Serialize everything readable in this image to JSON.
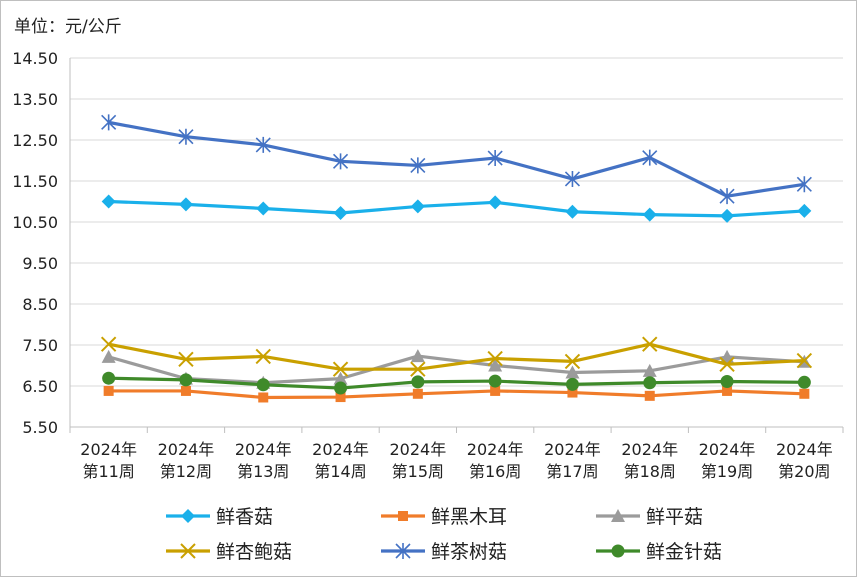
{
  "chart_data": {
    "type": "line",
    "unit_label": "单位：元/公斤",
    "categories": [
      "2024年\n第11周",
      "2024年\n第12周",
      "2024年\n第13周",
      "2024年\n第14周",
      "2024年\n第15周",
      "2024年\n第16周",
      "2024年\n第17周",
      "2024年\n第18周",
      "2024年\n第19周",
      "2024年\n第20周"
    ],
    "yticks": [
      "5.50",
      "6.50",
      "7.50",
      "8.50",
      "9.50",
      "10.50",
      "11.50",
      "12.50",
      "13.50",
      "14.50"
    ],
    "ylim": [
      5.5,
      14.5
    ],
    "grid": "horizontal",
    "legend_position": "bottom",
    "series": [
      {
        "name": "鲜香菇",
        "marker": "diamond",
        "color": "#1ab0ea",
        "values": [
          11.0,
          10.93,
          10.83,
          10.72,
          10.88,
          10.98,
          10.75,
          10.68,
          10.65,
          10.77
        ]
      },
      {
        "name": "鲜黑木耳",
        "marker": "square",
        "color": "#f07c2a",
        "values": [
          6.38,
          6.38,
          6.22,
          6.23,
          6.31,
          6.38,
          6.34,
          6.26,
          6.38,
          6.31
        ]
      },
      {
        "name": "鲜平菇",
        "marker": "triangle",
        "color": "#9b9b9b",
        "values": [
          7.21,
          6.68,
          6.58,
          6.68,
          7.23,
          7.0,
          6.83,
          6.87,
          7.21,
          7.09
        ]
      },
      {
        "name": "鲜杏鲍菇",
        "marker": "x",
        "color": "#c9a000",
        "values": [
          7.52,
          7.15,
          7.22,
          6.91,
          6.91,
          7.17,
          7.1,
          7.52,
          7.03,
          7.12
        ]
      },
      {
        "name": "鲜茶树菇",
        "marker": "star",
        "color": "#4472c4",
        "values": [
          12.93,
          12.58,
          12.38,
          11.98,
          11.88,
          12.06,
          11.55,
          12.07,
          11.13,
          11.42
        ]
      },
      {
        "name": "鲜金针菇",
        "marker": "circle",
        "color": "#3f8a2a",
        "values": [
          6.69,
          6.65,
          6.53,
          6.45,
          6.6,
          6.62,
          6.54,
          6.58,
          6.61,
          6.59
        ]
      }
    ]
  }
}
